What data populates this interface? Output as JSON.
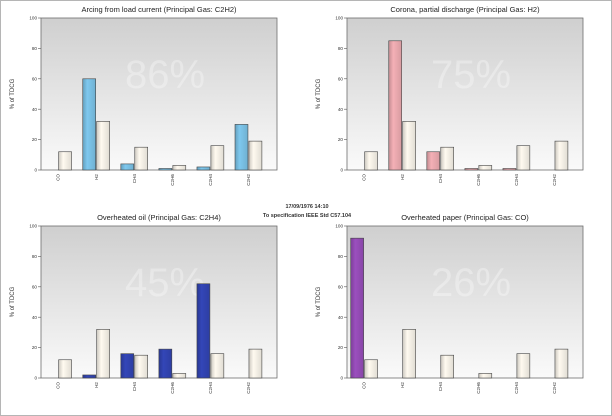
{
  "info": {
    "datetime": "17/09/1976 14:10",
    "spec": "To specification IEEE Std C57.104"
  },
  "colors": {
    "reference_bar": "#fffaf0",
    "plot_bg_top": "#cfcfcf",
    "plot_bg_bottom": "#fafafa"
  },
  "chart_data": [
    {
      "type": "bar",
      "title": "Arcing from load current (Principal Gas: C2H2)",
      "ylabel": "% of TDCG",
      "ylim": [
        0,
        100
      ],
      "yticks": [
        "0",
        "20",
        "40",
        "60",
        "80",
        "100"
      ],
      "percent_label": "86%",
      "categories": [
        "CO",
        "H2",
        "CH4",
        "C2H6",
        "C2H4",
        "C2H2"
      ],
      "series": [
        {
          "color": "#7ec8ee",
          "values": [
            0,
            60,
            4,
            1,
            2,
            30
          ]
        },
        {
          "color": "#fffaf0",
          "values": [
            12,
            32,
            15,
            3,
            16,
            19
          ]
        }
      ]
    },
    {
      "type": "bar",
      "title": "Corona, partial discharge (Principal Gas: H2)",
      "ylabel": "% of TDCG",
      "ylim": [
        0,
        100
      ],
      "yticks": [
        "0",
        "20",
        "40",
        "60",
        "80",
        "100"
      ],
      "percent_label": "75%",
      "categories": [
        "CO",
        "H2",
        "CH4",
        "C2H6",
        "C2H4",
        "C2H2"
      ],
      "series": [
        {
          "color": "#f4b0b6",
          "values": [
            0,
            85,
            12,
            1,
            1,
            0
          ]
        },
        {
          "color": "#fffaf0",
          "values": [
            12,
            32,
            15,
            3,
            16,
            19
          ]
        }
      ]
    },
    {
      "type": "bar",
      "title": "Overheated oil (Principal Gas: C2H4)",
      "ylabel": "% of TDCG",
      "ylim": [
        0,
        100
      ],
      "yticks": [
        "0",
        "20",
        "40",
        "60",
        "80",
        "100"
      ],
      "percent_label": "45%",
      "categories": [
        "CO",
        "H2",
        "CH4",
        "C2H6",
        "C2H4",
        "C2H2"
      ],
      "series": [
        {
          "color": "#3346b8",
          "values": [
            0,
            2,
            16,
            19,
            62,
            0
          ]
        },
        {
          "color": "#fffaf0",
          "values": [
            12,
            32,
            15,
            3,
            16,
            19
          ]
        }
      ]
    },
    {
      "type": "bar",
      "title": "Overheated paper (Principal Gas: CO)",
      "ylabel": "% of TDCG",
      "ylim": [
        0,
        100
      ],
      "yticks": [
        "0",
        "20",
        "40",
        "60",
        "80",
        "100"
      ],
      "percent_label": "26%",
      "categories": [
        "CO",
        "H2",
        "CH4",
        "C2H6",
        "C2H4",
        "C2H2"
      ],
      "series": [
        {
          "color": "#9b4fbe",
          "values": [
            92,
            0,
            0,
            0,
            0,
            0
          ]
        },
        {
          "color": "#fffaf0",
          "values": [
            12,
            32,
            15,
            3,
            16,
            19
          ]
        }
      ]
    }
  ]
}
